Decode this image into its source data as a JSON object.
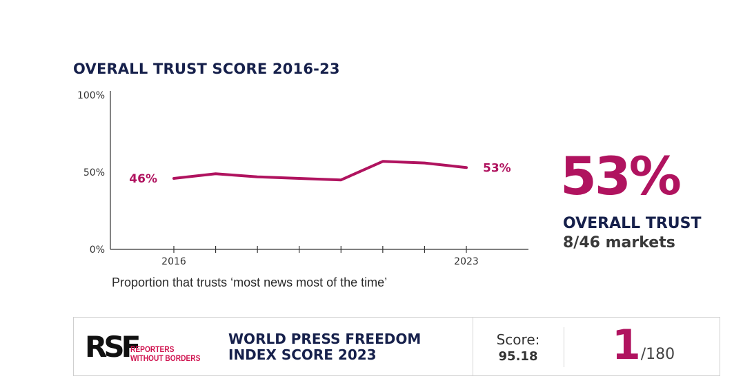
{
  "chart_data": {
    "type": "line",
    "title": "OVERALL TRUST SCORE 2016-23",
    "x": [
      2016,
      2017,
      2018,
      2019,
      2020,
      2021,
      2022,
      2023
    ],
    "x_tick_labels": [
      "2016",
      "",
      "",
      "",
      "",
      "",
      "",
      "2023"
    ],
    "series": [
      {
        "values": [
          46,
          49,
          47,
          46,
          45,
          57,
          56,
          53
        ]
      }
    ],
    "ylim": [
      0,
      100
    ],
    "y_ticks": [
      0,
      50,
      100
    ],
    "y_tick_labels": [
      "0%",
      "50%",
      "100%"
    ],
    "data_labels": {
      "first": "46%",
      "last": "53%"
    },
    "caption": "Proportion that trusts ‘most news most of the time’",
    "grid": false,
    "color": "#b0135f"
  },
  "highlight": {
    "value": "53%",
    "label": "OVERALL TRUST",
    "rank": "8/46 markets"
  },
  "rsf": {
    "logo_mark": "RSF",
    "logo_line1": "REPORTERS",
    "logo_line2": "WITHOUT BORDERS",
    "index_title_line1": "WORLD PRESS FREEDOM",
    "index_title_line2": "INDEX SCORE 2023",
    "score_label": "Score:",
    "score_value": "95.18",
    "rank": "1",
    "rank_total": "/180"
  },
  "colors": {
    "accent": "#b0135f",
    "navy": "#16204b",
    "rsf_red": "#d0134f"
  }
}
